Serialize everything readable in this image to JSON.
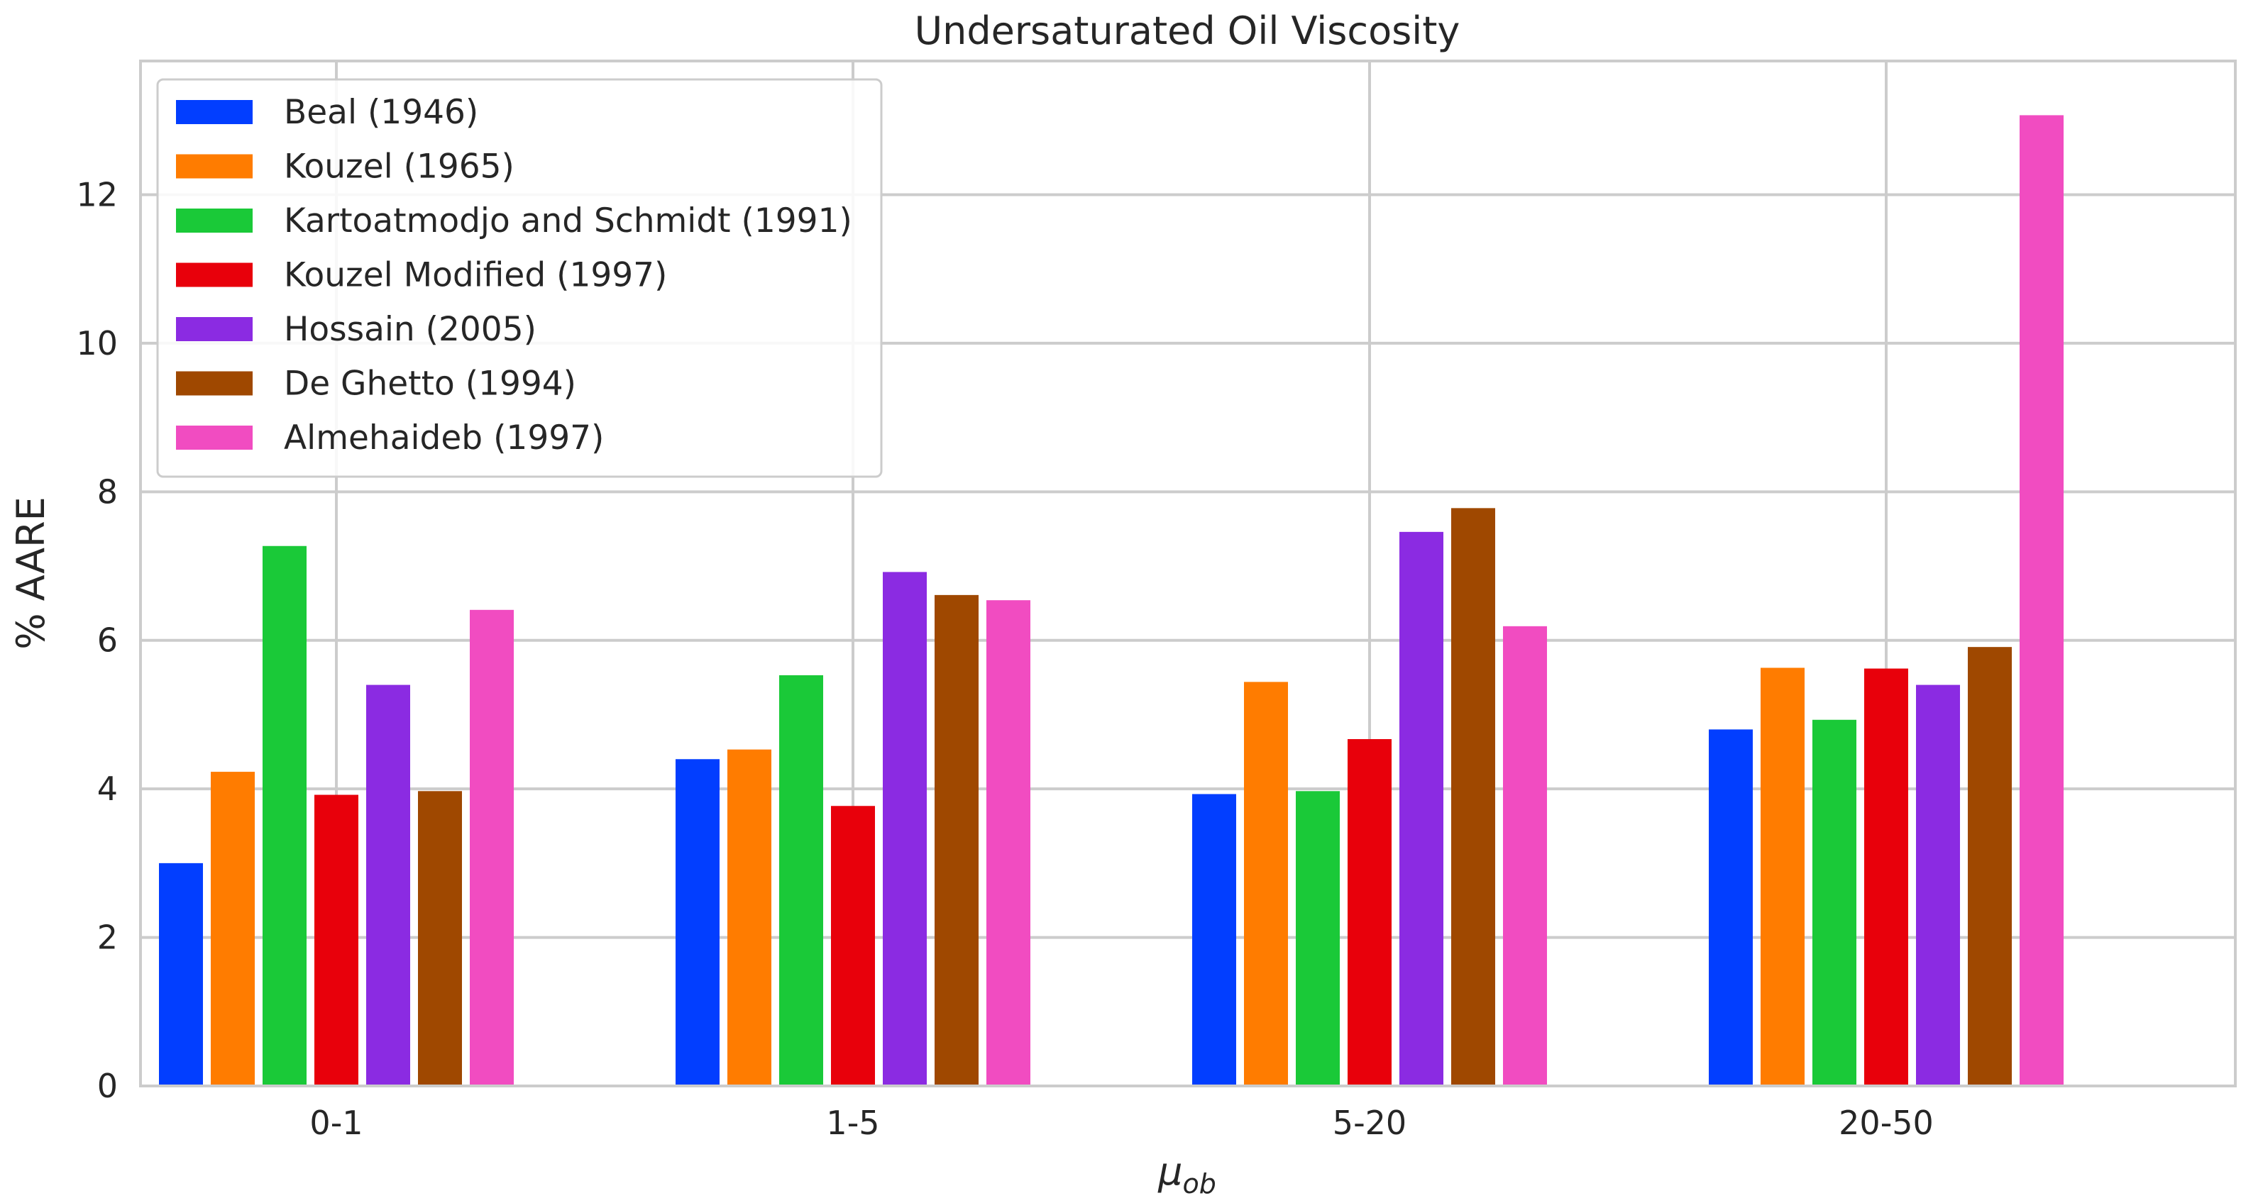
{
  "chart_data": {
    "type": "bar",
    "title": "Undersaturated Oil Viscosity",
    "xlabel": "μ",
    "xlabel_subscript": "ob",
    "ylabel": "% AARE",
    "ylim": [
      0,
      13.8
    ],
    "yticks": [
      0,
      2,
      4,
      6,
      8,
      10,
      12
    ],
    "grid": true,
    "legend_position": "top-left",
    "categories": [
      "0-1",
      "1-5",
      "5-20",
      "20-50"
    ],
    "series": [
      {
        "name": "Beal (1946)",
        "color": "#023eff",
        "values": [
          3.0,
          4.4,
          3.93,
          4.8
        ]
      },
      {
        "name": "Kouzel (1965)",
        "color": "#ff7c00",
        "values": [
          4.23,
          4.53,
          5.44,
          5.63
        ]
      },
      {
        "name": "Kartoatmodjo and Schmidt (1991)",
        "color": "#1ac938",
        "values": [
          7.27,
          5.53,
          3.97,
          4.93
        ]
      },
      {
        "name": "Kouzel Modified (1997)",
        "color": "#e8000b",
        "values": [
          3.92,
          3.77,
          4.67,
          5.62
        ]
      },
      {
        "name": "Hossain (2005)",
        "color": "#8b2be2",
        "values": [
          5.4,
          6.92,
          7.46,
          5.4
        ]
      },
      {
        "name": "De Ghetto (1994)",
        "color": "#9f4800",
        "values": [
          3.97,
          6.61,
          7.78,
          5.91
        ]
      },
      {
        "name": "Almehaideb (1997)",
        "color": "#f14cc1",
        "values": [
          6.41,
          6.54,
          6.19,
          13.07
        ]
      }
    ]
  }
}
